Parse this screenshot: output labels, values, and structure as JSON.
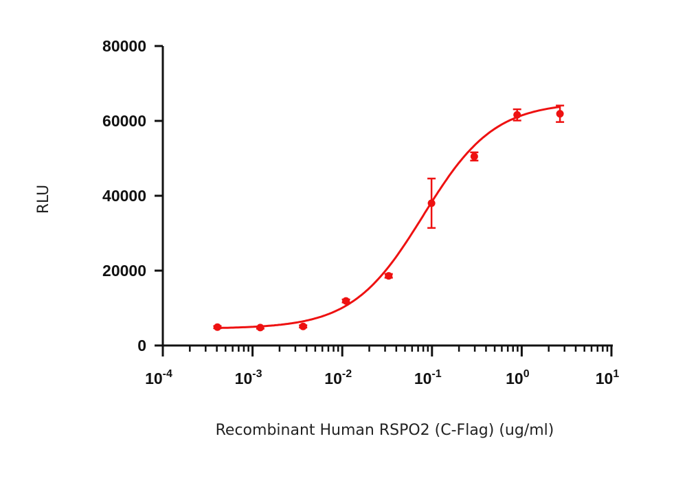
{
  "chart_data": {
    "type": "scatter",
    "xlabel": "Recombinant Human RSPO2 (C-Flag) (ug/ml)",
    "ylabel": "RLU",
    "x_scale": "log",
    "xlim": [
      0.0001,
      10
    ],
    "ylim": [
      0,
      80000
    ],
    "x_tick_labels": [
      {
        "base": "10",
        "exp": "-4"
      },
      {
        "base": "10",
        "exp": "-3"
      },
      {
        "base": "10",
        "exp": "-2"
      },
      {
        "base": "10",
        "exp": "-1"
      },
      {
        "base": "10",
        "exp": "0"
      },
      {
        "base": "10",
        "exp": "1"
      }
    ],
    "y_tick_labels": [
      "0",
      "20000",
      "40000",
      "60000",
      "80000"
    ],
    "y_ticks": [
      0,
      20000,
      40000,
      60000,
      80000
    ],
    "grid": false,
    "color": "#ee1111",
    "series": [
      {
        "x": [
          0.000406,
          0.00122,
          0.00366,
          0.011,
          0.0329,
          0.0988,
          0.296,
          0.889,
          2.67
        ],
        "y": [
          4900,
          4800,
          5100,
          11900,
          18600,
          38000,
          50500,
          61600,
          61900
        ],
        "error": [
          300,
          300,
          300,
          400,
          500,
          6600,
          1100,
          1500,
          2200
        ]
      }
    ],
    "fit": {
      "model": "4PL",
      "bottom": 4500,
      "top": 65000,
      "ec50": 0.08,
      "hill": 1.1
    }
  }
}
